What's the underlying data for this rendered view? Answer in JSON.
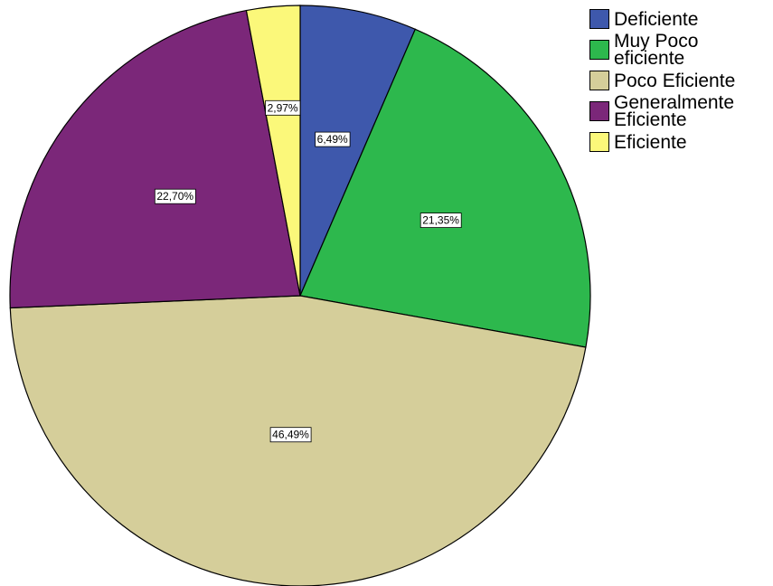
{
  "chart_data": {
    "type": "pie",
    "start_angle_deg": 0,
    "direction": "clockwise",
    "slices": [
      {
        "label": "Deficiente",
        "value": 6.49,
        "value_label": "6,49%",
        "color": "#3e58ac"
      },
      {
        "label": "Muy Poco eficiente",
        "value": 21.35,
        "value_label": "21,35%",
        "color": "#2db84d"
      },
      {
        "label": "Poco Eficiente",
        "value": 46.49,
        "value_label": "46,49%",
        "color": "#d5ce9a"
      },
      {
        "label": "Generalmente Eficiente",
        "value": 22.7,
        "value_label": "22,70%",
        "color": "#7b2779"
      },
      {
        "label": "Eficiente",
        "value": 2.97,
        "value_label": "2,97%",
        "color": "#fbf87a"
      }
    ],
    "legend": {
      "position": "top-right",
      "entries": [
        "Deficiente",
        "Muy Poco\neficiente",
        "Poco Eficiente",
        "Generalmente\nEficiente",
        "Eficiente"
      ]
    }
  }
}
